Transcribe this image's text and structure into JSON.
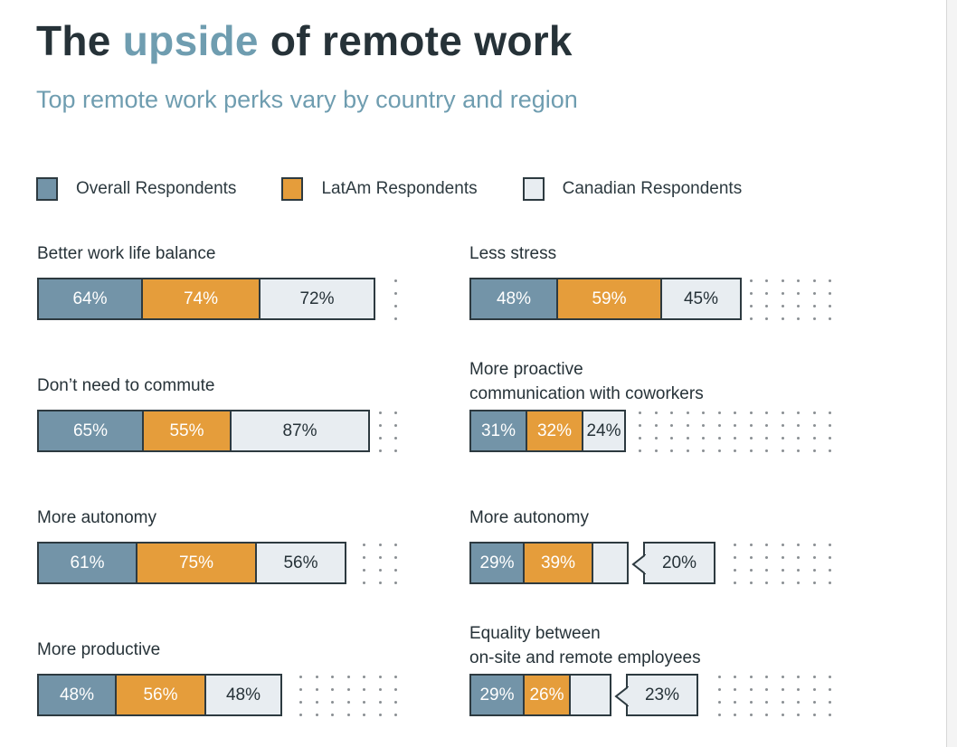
{
  "title": {
    "before": "The ",
    "accent": "upside",
    "after": " of remote work"
  },
  "subtitle": "Top remote work perks vary by country and region",
  "colors": {
    "overall": "#7394a8",
    "latam": "#e59d3b",
    "canadian": "#e8edf1",
    "border": "#2d3a40",
    "accent": "#6f9db0"
  },
  "chart_data": {
    "type": "bar",
    "subtype": "stacked-horizontal",
    "legend": [
      {
        "name": "Overall Respondents",
        "color": "#7394a8"
      },
      {
        "name": "LatAm Respondents",
        "color": "#e59d3b"
      },
      {
        "name": "Canadian Respondents",
        "color": "#e8edf1"
      }
    ],
    "legend_placement": "top",
    "unit": "%",
    "panels": [
      {
        "label": "Better work life balance",
        "values": [
          64,
          74,
          72
        ],
        "labels": [
          "64%",
          "74%",
          "72%"
        ]
      },
      {
        "label": "Less stress",
        "values": [
          48,
          59,
          45
        ],
        "labels": [
          "48%",
          "59%",
          "45%"
        ]
      },
      {
        "label": "Don’t need to commute",
        "values": [
          65,
          55,
          87
        ],
        "labels": [
          "65%",
          "55%",
          "87%"
        ]
      },
      {
        "label": "More proactive\ncommunication with coworkers",
        "values": [
          31,
          32,
          24
        ],
        "labels": [
          "31%",
          "32%",
          "24%"
        ]
      },
      {
        "label": "More autonomy",
        "values": [
          61,
          75,
          56
        ],
        "labels": [
          "61%",
          "75%",
          "56%"
        ]
      },
      {
        "label": "More autonomy",
        "values": [
          29,
          39,
          20
        ],
        "labels": [
          "29%",
          "39%",
          "20%"
        ],
        "callout": true
      },
      {
        "label": "More productive",
        "values": [
          48,
          56,
          48
        ],
        "labels": [
          "48%",
          "56%",
          "48%"
        ]
      },
      {
        "label": "Equality between\non-site and remote employees",
        "values": [
          29,
          26,
          23
        ],
        "labels": [
          "29%",
          "26%",
          "23%"
        ],
        "callout": true
      }
    ]
  }
}
